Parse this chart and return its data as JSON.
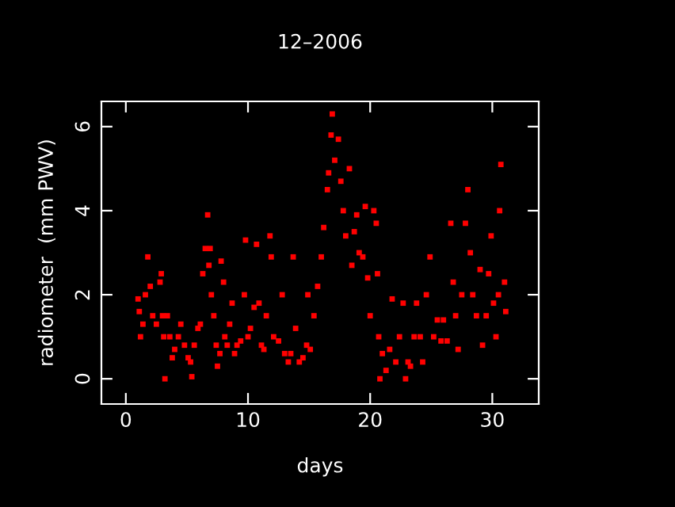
{
  "chart_data": {
    "type": "scatter",
    "title": "12–2006",
    "xlabel": "days",
    "ylabel": "radiometer  (mm PWV)",
    "xlim": [
      -2,
      33.8
    ],
    "ylim": [
      -0.6,
      6.6
    ],
    "xticks": [
      0,
      10,
      20,
      30
    ],
    "yticks": [
      0,
      2,
      4,
      6
    ],
    "grid": false,
    "marker": "square",
    "series": [
      {
        "color": "#ff0000",
        "x": [
          1.0,
          1.1,
          1.2,
          1.4,
          1.6,
          1.8,
          2.0,
          2.2,
          2.5,
          2.8,
          2.9,
          3.0,
          3.1,
          3.2,
          3.4,
          3.6,
          3.8,
          4.0,
          4.3,
          4.5,
          4.8,
          5.1,
          5.3,
          5.4,
          5.6,
          5.9,
          6.1,
          6.3,
          6.5,
          6.7,
          6.8,
          6.9,
          7.0,
          7.2,
          7.4,
          7.5,
          7.7,
          7.8,
          8.0,
          8.1,
          8.3,
          8.5,
          8.7,
          8.9,
          9.1,
          9.4,
          9.7,
          9.8,
          10.0,
          10.2,
          10.5,
          10.7,
          10.9,
          11.1,
          11.3,
          11.5,
          11.8,
          11.9,
          12.1,
          12.5,
          12.8,
          13.0,
          13.3,
          13.5,
          13.7,
          13.9,
          14.2,
          14.5,
          14.8,
          14.9,
          15.1,
          15.4,
          15.7,
          16.0,
          16.2,
          16.5,
          16.6,
          16.8,
          16.9,
          17.1,
          17.4,
          17.6,
          17.8,
          18.0,
          18.3,
          18.5,
          18.7,
          18.9,
          19.1,
          19.4,
          19.6,
          19.8,
          20.0,
          20.3,
          20.5,
          20.6,
          20.7,
          20.8,
          21.0,
          21.3,
          21.6,
          21.8,
          22.1,
          22.4,
          22.7,
          22.9,
          23.1,
          23.3,
          23.6,
          23.8,
          24.1,
          24.3,
          24.6,
          24.9,
          25.2,
          25.5,
          25.8,
          26.0,
          26.3,
          26.6,
          26.8,
          27.0,
          27.2,
          27.5,
          27.8,
          28.0,
          28.2,
          28.4,
          28.7,
          29.0,
          29.2,
          29.5,
          29.7,
          29.9,
          30.1,
          30.3,
          30.5,
          30.6,
          30.7,
          31.0,
          31.1
        ],
        "values": [
          1.9,
          1.6,
          1.0,
          1.3,
          2.0,
          2.9,
          2.2,
          1.5,
          1.3,
          2.3,
          2.5,
          1.5,
          1.0,
          0.0,
          1.5,
          1.0,
          0.5,
          0.7,
          1.0,
          1.3,
          0.8,
          0.5,
          0.4,
          0.05,
          0.8,
          1.2,
          1.3,
          2.5,
          3.1,
          3.9,
          2.7,
          3.1,
          2.0,
          1.5,
          0.8,
          0.3,
          0.6,
          2.8,
          2.3,
          1.0,
          0.8,
          1.3,
          1.8,
          0.6,
          0.8,
          0.9,
          2.0,
          3.3,
          1.0,
          1.2,
          1.7,
          3.2,
          1.8,
          0.8,
          0.7,
          1.5,
          3.4,
          2.9,
          1.0,
          0.9,
          2.0,
          0.6,
          0.4,
          0.6,
          2.9,
          1.2,
          0.4,
          0.5,
          0.8,
          2.0,
          0.7,
          1.5,
          2.2,
          2.9,
          3.6,
          4.5,
          4.9,
          5.8,
          6.3,
          5.2,
          5.7,
          4.7,
          4.0,
          3.4,
          5.0,
          2.7,
          3.5,
          3.9,
          3.0,
          2.9,
          4.1,
          2.4,
          1.5,
          4.0,
          3.7,
          2.5,
          1.0,
          0.0,
          0.6,
          0.2,
          0.7,
          1.9,
          0.4,
          1.0,
          1.8,
          0.0,
          0.4,
          0.3,
          1.0,
          1.8,
          1.0,
          0.4,
          2.0,
          2.9,
          1.0,
          1.4,
          0.9,
          1.4,
          0.9,
          3.7,
          2.3,
          1.5,
          0.7,
          2.0,
          3.7,
          4.5,
          3.0,
          2.0,
          1.5,
          2.6,
          0.8,
          1.5,
          2.5,
          3.4,
          1.8,
          1.0,
          2.0,
          4.0,
          5.1,
          2.3,
          1.6
        ]
      }
    ]
  }
}
